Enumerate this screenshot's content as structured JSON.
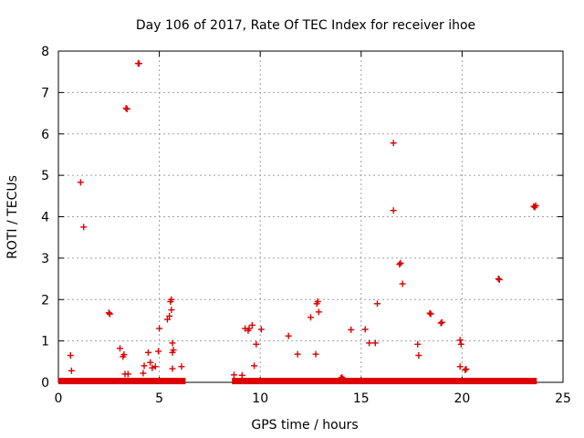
{
  "chart_data": {
    "type": "scatter",
    "title": "Day 106 of 2017, Rate Of TEC Index for receiver ihoe",
    "xlabel": "GPS time / hours",
    "ylabel": "ROTI / TECUs",
    "xlim": [
      0,
      25
    ],
    "ylim": [
      0,
      8
    ],
    "xticks": [
      0,
      5,
      10,
      15,
      20,
      25
    ],
    "yticks": [
      0,
      1,
      2,
      3,
      4,
      5,
      6,
      7,
      8
    ],
    "grid": true,
    "marker": "+",
    "marker_color": "#dd0000",
    "baseline_segments": [
      {
        "x_start": 0.0,
        "x_end": 6.3,
        "y": 0.02
      },
      {
        "x_start": 8.6,
        "x_end": 23.7,
        "y": 0.02
      }
    ],
    "points": [
      [
        0.6,
        0.65
      ],
      [
        0.65,
        0.28
      ],
      [
        1.1,
        4.83
      ],
      [
        1.25,
        3.75
      ],
      [
        2.5,
        1.68
      ],
      [
        2.55,
        1.65
      ],
      [
        3.05,
        0.82
      ],
      [
        3.2,
        0.62
      ],
      [
        3.25,
        0.67
      ],
      [
        3.3,
        0.2
      ],
      [
        3.35,
        6.62
      ],
      [
        3.4,
        6.6
      ],
      [
        3.45,
        0.2
      ],
      [
        3.95,
        7.7
      ],
      [
        4.0,
        7.7
      ],
      [
        4.2,
        0.22
      ],
      [
        4.25,
        0.4
      ],
      [
        4.45,
        0.72
      ],
      [
        4.55,
        0.48
      ],
      [
        4.65,
        0.35
      ],
      [
        4.8,
        0.38
      ],
      [
        4.95,
        0.75
      ],
      [
        5.0,
        1.3
      ],
      [
        5.4,
        1.52
      ],
      [
        5.5,
        1.6
      ],
      [
        5.55,
        1.95
      ],
      [
        5.6,
        2.0
      ],
      [
        5.6,
        1.75
      ],
      [
        5.65,
        0.95
      ],
      [
        5.65,
        0.72
      ],
      [
        5.7,
        0.78
      ],
      [
        5.65,
        0.33
      ],
      [
        6.1,
        0.38
      ],
      [
        8.7,
        0.18
      ],
      [
        9.1,
        0.17
      ],
      [
        9.25,
        1.3
      ],
      [
        9.4,
        1.25
      ],
      [
        9.45,
        1.3
      ],
      [
        9.6,
        1.38
      ],
      [
        9.7,
        0.4
      ],
      [
        9.8,
        0.92
      ],
      [
        10.05,
        1.28
      ],
      [
        11.4,
        1.12
      ],
      [
        11.85,
        0.68
      ],
      [
        12.5,
        1.57
      ],
      [
        12.75,
        0.68
      ],
      [
        12.8,
        1.9
      ],
      [
        12.85,
        1.95
      ],
      [
        12.9,
        1.7
      ],
      [
        14.0,
        0.1
      ],
      [
        14.05,
        0.12
      ],
      [
        14.1,
        0.08
      ],
      [
        14.5,
        1.27
      ],
      [
        15.2,
        1.28
      ],
      [
        15.4,
        0.95
      ],
      [
        15.7,
        0.95
      ],
      [
        15.8,
        1.9
      ],
      [
        16.6,
        5.78
      ],
      [
        16.6,
        4.15
      ],
      [
        16.9,
        2.85
      ],
      [
        16.95,
        2.88
      ],
      [
        17.05,
        2.38
      ],
      [
        17.8,
        0.92
      ],
      [
        17.85,
        0.65
      ],
      [
        18.4,
        1.67
      ],
      [
        18.45,
        1.65
      ],
      [
        18.95,
        1.43
      ],
      [
        19.0,
        1.45
      ],
      [
        19.9,
        1.02
      ],
      [
        19.9,
        0.38
      ],
      [
        19.95,
        0.92
      ],
      [
        20.15,
        0.3
      ],
      [
        20.2,
        0.32
      ],
      [
        21.8,
        2.5
      ],
      [
        21.85,
        2.48
      ],
      [
        23.55,
        4.25
      ],
      [
        23.6,
        4.23
      ],
      [
        23.65,
        4.27
      ]
    ]
  }
}
